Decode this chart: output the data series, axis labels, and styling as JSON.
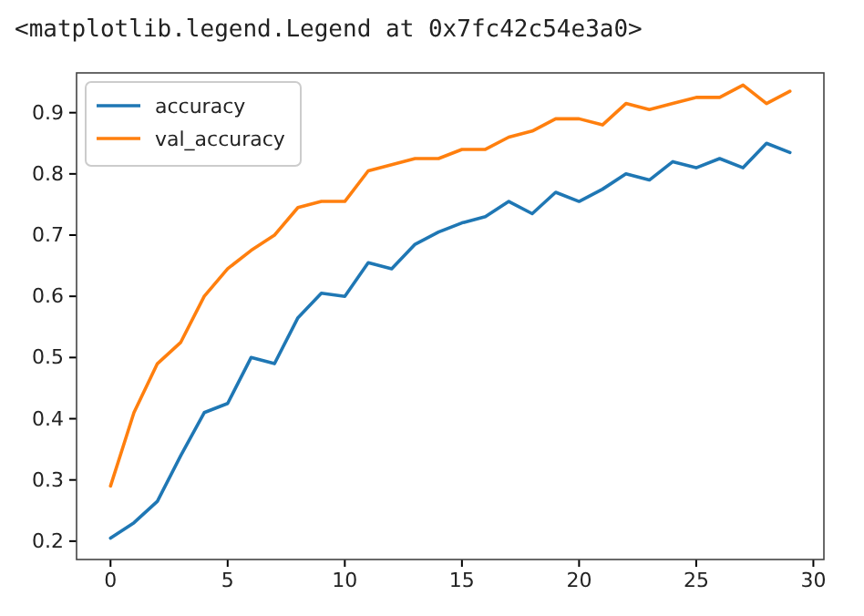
{
  "chart_data": {
    "type": "line",
    "annotations": [
      "<matplotlib.legend.Legend at 0x7fc42c54e3a0>"
    ],
    "x": [
      0,
      1,
      2,
      3,
      4,
      5,
      6,
      7,
      8,
      9,
      10,
      11,
      12,
      13,
      14,
      15,
      16,
      17,
      18,
      19,
      20,
      21,
      22,
      23,
      24,
      25,
      26,
      27,
      28,
      29
    ],
    "series": [
      {
        "name": "accuracy",
        "color": "#1f77b4",
        "values": [
          0.205,
          0.23,
          0.265,
          0.34,
          0.41,
          0.425,
          0.5,
          0.49,
          0.565,
          0.605,
          0.6,
          0.655,
          0.645,
          0.685,
          0.705,
          0.72,
          0.73,
          0.755,
          0.735,
          0.77,
          0.755,
          0.775,
          0.8,
          0.79,
          0.82,
          0.81,
          0.825,
          0.81,
          0.85,
          0.835
        ]
      },
      {
        "name": "val_accuracy",
        "color": "#ff7f0e",
        "values": [
          0.29,
          0.41,
          0.49,
          0.525,
          0.6,
          0.645,
          0.675,
          0.7,
          0.745,
          0.755,
          0.755,
          0.805,
          0.815,
          0.825,
          0.825,
          0.84,
          0.84,
          0.86,
          0.87,
          0.89,
          0.89,
          0.88,
          0.915,
          0.905,
          0.915,
          0.925,
          0.925,
          0.945,
          0.915,
          0.935
        ]
      }
    ],
    "xlim": [
      -1.45,
      30.45
    ],
    "xticks": [
      0,
      5,
      10,
      15,
      20,
      25,
      30
    ],
    "ylim": [
      0.17,
      0.965
    ],
    "yticks": [
      {
        "value": 0.2,
        "label": "0.2"
      },
      {
        "value": 0.3,
        "label": "0.3"
      },
      {
        "value": 0.4,
        "label": "0.4"
      },
      {
        "value": 0.5,
        "label": "0.5"
      },
      {
        "value": 0.6,
        "label": "0.6"
      },
      {
        "value": 0.7,
        "label": "0.7"
      },
      {
        "value": 0.8,
        "label": "0.8"
      },
      {
        "value": 0.9,
        "label": "0.9"
      }
    ],
    "legend": "top left",
    "grid": false,
    "line_style": "solid",
    "marker": "none"
  }
}
